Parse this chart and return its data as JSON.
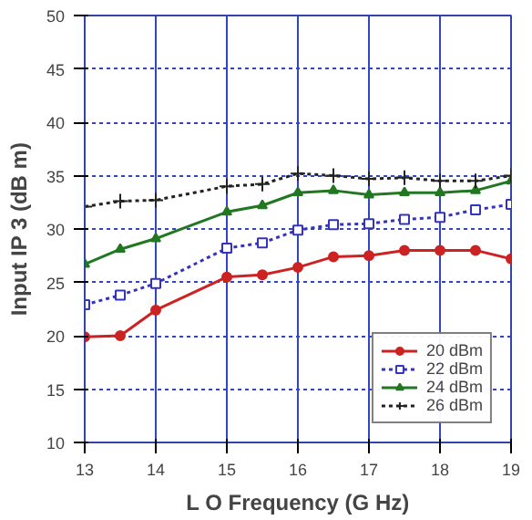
{
  "chart_data": {
    "type": "line",
    "xlabel": "L O Frequency (G Hz)",
    "ylabel": "Input IP 3 (dB m)",
    "x": [
      13,
      13.5,
      14,
      15,
      15.5,
      16,
      16.5,
      17,
      17.5,
      18,
      18.5,
      19
    ],
    "xlim": [
      13,
      19
    ],
    "xticks": [
      13,
      14,
      15,
      16,
      17,
      18,
      19
    ],
    "ylim": [
      10,
      50
    ],
    "yticks": [
      10,
      15,
      20,
      25,
      30,
      35,
      40,
      45,
      50
    ],
    "grid": true,
    "legend": "bottom right",
    "series": [
      {
        "name": "20 dBm",
        "color": "#cc2222",
        "marker": "circle",
        "line_style": "solid",
        "values": [
          19.9,
          20,
          22.4,
          25.5,
          25.7,
          26.4,
          27.4,
          27.5,
          28,
          28,
          28,
          27.2
        ]
      },
      {
        "name": "22 dBm",
        "color": "#3333bb",
        "marker": "square",
        "line_style": "dotted",
        "values": [
          22.9,
          23.8,
          24.9,
          28.2,
          28.7,
          29.9,
          30.4,
          30.5,
          30.9,
          31.1,
          31.8,
          32.3
        ]
      },
      {
        "name": "24 dBm",
        "color": "#227722",
        "marker": "triangle",
        "line_style": "solid",
        "values": [
          26.7,
          28.1,
          29.1,
          31.6,
          32.2,
          33.4,
          33.6,
          33.2,
          33.4,
          33.4,
          33.6,
          34.5
        ]
      },
      {
        "name": "26 dBm",
        "color": "#222222",
        "marker": "cross",
        "line_style": "dotted",
        "values": [
          32.1,
          32.6,
          32.7,
          34.0,
          34.2,
          35.2,
          35.0,
          34.7,
          34.8,
          34.5,
          34.5,
          35.0
        ]
      }
    ]
  }
}
